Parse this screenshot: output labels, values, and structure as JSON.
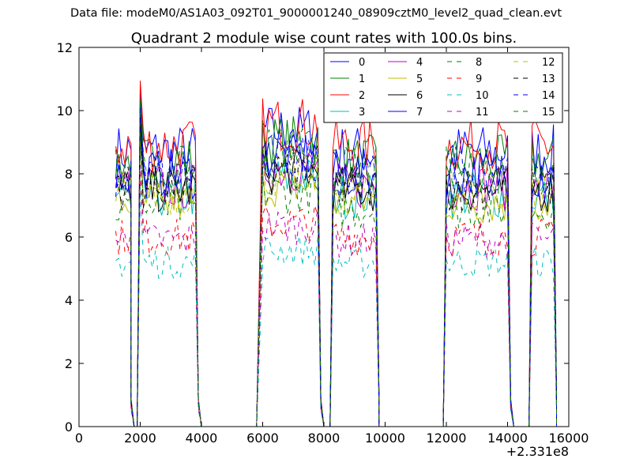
{
  "chart_data": {
    "type": "line",
    "suptitle": "Data file: modeM0/AS1A03_092T01_9000001240_08909cztM0_level2_quad_clean.evt",
    "title": "Quadrant 2 module wise count rates with 100.0s bins.",
    "xlabel": "",
    "ylabel": "",
    "x_offset_label": "+2.331e8",
    "xlim": [
      0,
      16000
    ],
    "ylim": [
      0,
      12
    ],
    "xticks": [
      0,
      2000,
      4000,
      6000,
      8000,
      10000,
      12000,
      14000,
      16000
    ],
    "yticks": [
      0,
      2,
      4,
      6,
      8,
      10,
      12
    ],
    "xtick_labels": [
      "0",
      "2000",
      "4000",
      "6000",
      "8000",
      "10000",
      "12000",
      "14000",
      "16000"
    ],
    "ytick_labels": [
      "0",
      "2",
      "4",
      "6",
      "8",
      "10",
      "12"
    ],
    "legend_position": "top-right",
    "segments": [
      {
        "start": 1200,
        "end": 1700
      },
      {
        "start": 2000,
        "end": 3800
      },
      {
        "start": 6000,
        "end": 7800
      },
      {
        "start": 8300,
        "end": 9700
      },
      {
        "start": 12000,
        "end": 14000
      },
      {
        "start": 14800,
        "end": 15500
      }
    ],
    "dropouts": [
      {
        "from": 1700,
        "to": 1700,
        "floor": 1800,
        "rise": 1900
      },
      {
        "from": 3800,
        "to": 3900,
        "floor": 4000,
        "rise": 5800
      },
      {
        "from": 7800,
        "to": 7900,
        "floor": 8000,
        "rise": 8200
      },
      {
        "from": 9700,
        "to": 9800,
        "floor": 9800,
        "rise": 11900
      },
      {
        "from": 14000,
        "to": 14100,
        "floor": 14200,
        "rise": 14700
      },
      {
        "from": 15500,
        "to": 15600,
        "floor": 15600,
        "rise": 15600
      }
    ],
    "series": [
      {
        "name": "0",
        "color": "#0000ff",
        "dash": "solid",
        "level": 8.7
      },
      {
        "name": "1",
        "color": "#008000",
        "dash": "solid",
        "level": 8.4
      },
      {
        "name": "2",
        "color": "#ff0000",
        "dash": "solid",
        "level": 8.9
      },
      {
        "name": "3",
        "color": "#00bfbf",
        "dash": "solid",
        "level": 7.3
      },
      {
        "name": "4",
        "color": "#bf00bf",
        "dash": "solid",
        "level": 7.6
      },
      {
        "name": "5",
        "color": "#bfbf00",
        "dash": "solid",
        "level": 7.1
      },
      {
        "name": "6",
        "color": "#000000",
        "dash": "solid",
        "level": 7.5
      },
      {
        "name": "7",
        "color": "#0000ff",
        "dash": "solid",
        "level": 8.0
      },
      {
        "name": "8",
        "color": "#008000",
        "dash": "dashed",
        "level": 6.9
      },
      {
        "name": "9",
        "color": "#ff0000",
        "dash": "dashed",
        "level": 6.0
      },
      {
        "name": "10",
        "color": "#00bfbf",
        "dash": "dashed",
        "level": 5.2
      },
      {
        "name": "11",
        "color": "#bf00bf",
        "dash": "dashed",
        "level": 5.9
      },
      {
        "name": "12",
        "color": "#bfbf00",
        "dash": "dashed",
        "level": 7.4
      },
      {
        "name": "13",
        "color": "#000000",
        "dash": "dashed",
        "level": 7.6
      },
      {
        "name": "14",
        "color": "#0000ff",
        "dash": "dashed",
        "level": 7.9
      },
      {
        "name": "15",
        "color": "#008000",
        "dash": "dashed",
        "level": 8.1
      }
    ],
    "peak_x": 2000,
    "peak_value": 11.1
  }
}
